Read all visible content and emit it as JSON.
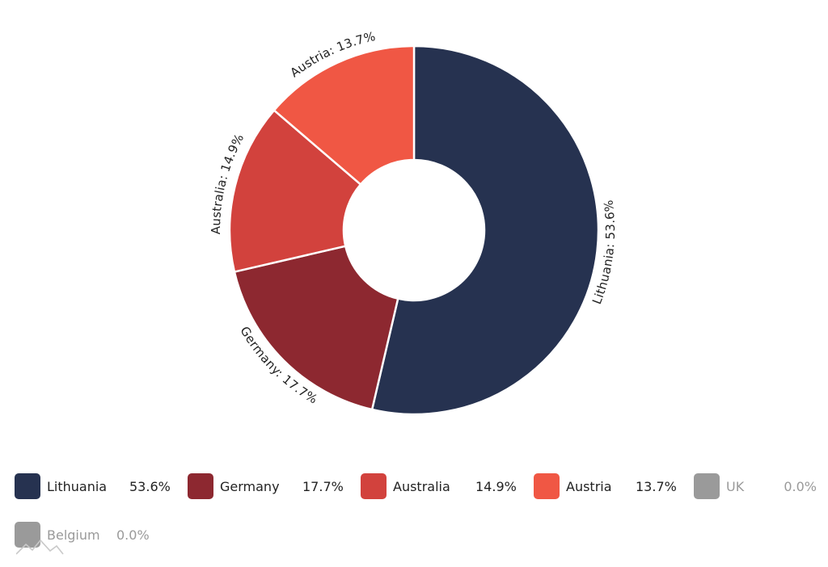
{
  "chart_data": {
    "type": "pie",
    "variant": "donut",
    "slices": [
      {
        "name": "Lithuania",
        "value": 53.6,
        "label": "Lithuania: 53.6%",
        "legend_value": "53.6%",
        "color": "#263250",
        "hidden": false
      },
      {
        "name": "Germany",
        "value": 17.7,
        "label": "Germany: 17.7%",
        "legend_value": "17.7%",
        "color": "#8d2830",
        "hidden": false
      },
      {
        "name": "Australia",
        "value": 14.9,
        "label": "Australia: 14.9%",
        "legend_value": "14.9%",
        "color": "#d2423d",
        "hidden": false
      },
      {
        "name": "Austria",
        "value": 13.7,
        "label": "Austria: 13.7%",
        "legend_value": "13.7%",
        "color": "#f05744",
        "hidden": false
      },
      {
        "name": "UK",
        "value": 0.0,
        "label": "",
        "legend_value": "0.0%",
        "color": "#9a9a9a",
        "hidden": true
      },
      {
        "name": "Belgium",
        "value": 0.0,
        "label": "",
        "legend_value": "0.0%",
        "color": "#9a9a9a",
        "hidden": true
      }
    ],
    "legend_placement": "bottom"
  }
}
